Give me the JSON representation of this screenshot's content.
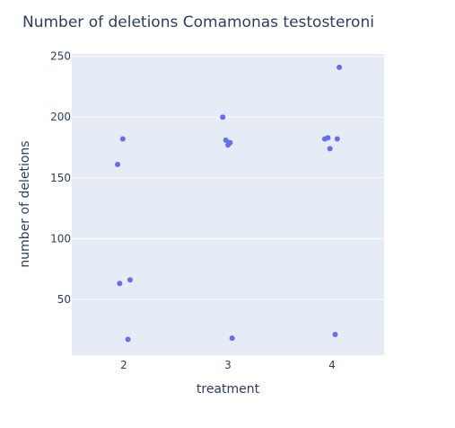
{
  "chart_data": {
    "type": "scatter",
    "title": "Number of deletions Comamonas testosteroni",
    "xlabel": "treatment",
    "ylabel": "number of deletions",
    "xlim": [
      1.5,
      4.5
    ],
    "ylim": [
      4,
      252
    ],
    "x_ticks": [
      2,
      3,
      4
    ],
    "y_ticks": [
      50,
      100,
      150,
      200,
      250
    ],
    "grid": true,
    "plot_background": "#e5ecf6",
    "marker_color": "#636efa",
    "series": [
      {
        "points": [
          {
            "x": 1.99,
            "y": 182
          },
          {
            "x": 1.94,
            "y": 161
          },
          {
            "x": 1.96,
            "y": 63
          },
          {
            "x": 2.06,
            "y": 66
          },
          {
            "x": 2.04,
            "y": 17
          },
          {
            "x": 2.95,
            "y": 200
          },
          {
            "x": 2.98,
            "y": 181
          },
          {
            "x": 3.02,
            "y": 179
          },
          {
            "x": 3.0,
            "y": 177
          },
          {
            "x": 3.04,
            "y": 18
          },
          {
            "x": 4.07,
            "y": 241
          },
          {
            "x": 3.93,
            "y": 182
          },
          {
            "x": 3.96,
            "y": 183
          },
          {
            "x": 4.05,
            "y": 182
          },
          {
            "x": 3.98,
            "y": 174
          },
          {
            "x": 4.03,
            "y": 21
          }
        ]
      }
    ]
  }
}
